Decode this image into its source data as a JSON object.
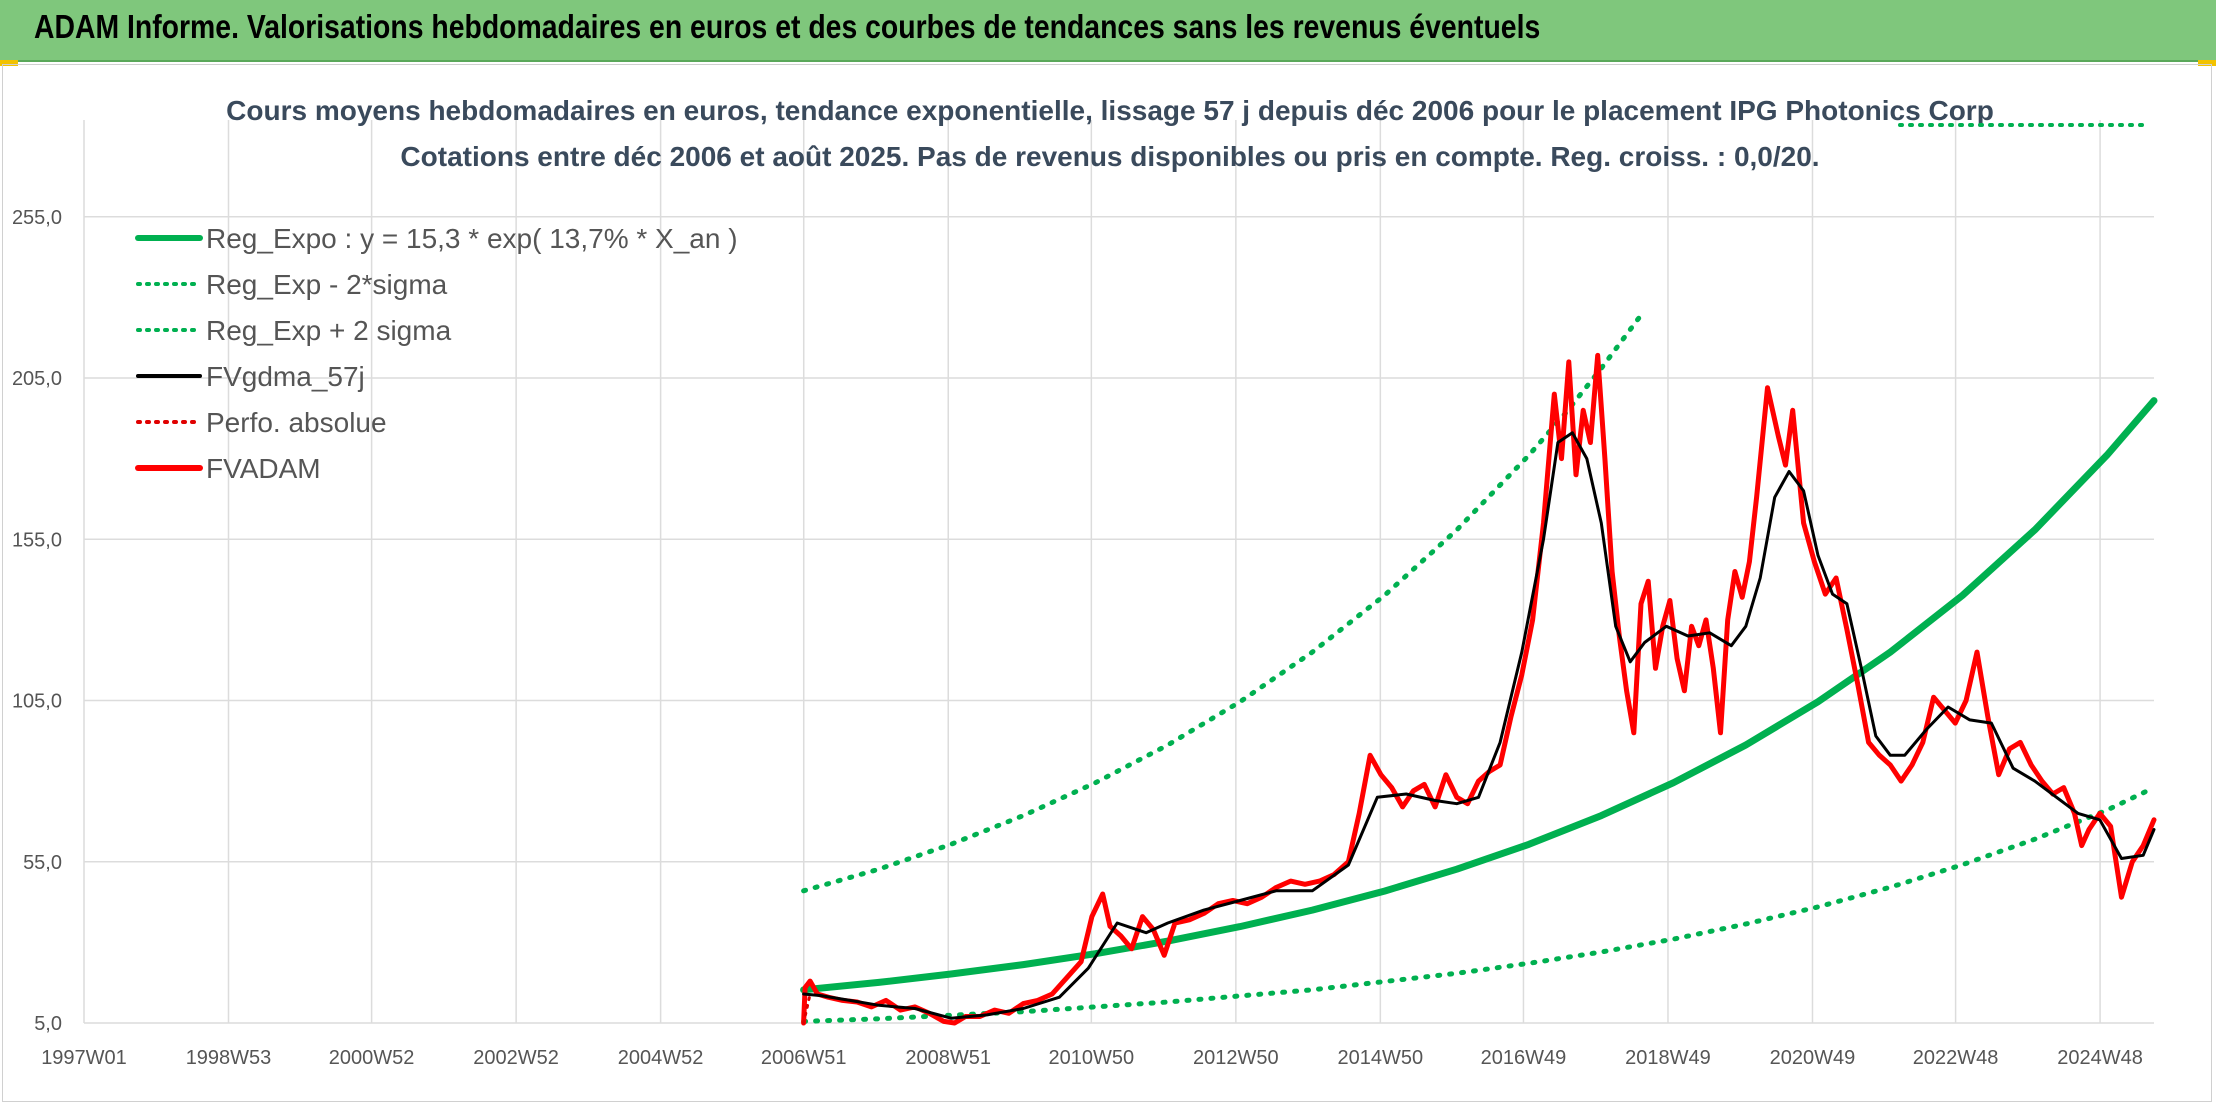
{
  "header": {
    "title": "ADAM Informe. Valorisations hebdomadaires en euros et des courbes de tendances sans les revenus éventuels"
  },
  "chart_data": {
    "type": "line",
    "title": "Cours moyens hebdomadaires en euros, tendance exponentielle, lissage 57 j depuis déc 2006 pour le placement IPG Photonics Corp",
    "subtitle": "Cotations entre déc 2006 et août 2025. Pas de revenus disponibles ou pris en compte. Reg. croiss. : 0,0/20.",
    "xlabel": "",
    "ylabel": "",
    "x_ticks": [
      "1997W01",
      "1998W53",
      "2000W52",
      "2002W52",
      "2004W52",
      "2006W51",
      "2008W51",
      "2010W50",
      "2012W50",
      "2014W50",
      "2016W49",
      "2018W49",
      "2020W49",
      "2022W48",
      "2024W48"
    ],
    "y_ticks": [
      "5,0",
      "55,0",
      "105,0",
      "155,0",
      "205,0",
      "255,0"
    ],
    "xlim": [
      1997.0,
      2025.65
    ],
    "ylim": [
      5,
      285
    ],
    "grid": true,
    "legend_position": "top-left",
    "colors": {
      "reg_expo": "#00b050",
      "sigma": "#00b050",
      "fvgdma": "#000000",
      "perfo": "#e00000",
      "fvadam": "#ff0000"
    },
    "legend": [
      {
        "label": "Reg_Expo : y = 15,3 * exp( 13,7% *  X_an )",
        "color": "#00b050",
        "style": "solid-thick"
      },
      {
        "label": "Reg_Exp - 2*sigma",
        "color": "#00b050",
        "style": "dotted"
      },
      {
        "label": "Reg_Exp + 2 sigma",
        "color": "#00b050",
        "style": "dotted"
      },
      {
        "label": "FVgdma_57j",
        "color": "#000000",
        "style": "solid"
      },
      {
        "label": "Perfo. absolue",
        "color": "#e00000",
        "style": "dotted"
      },
      {
        "label": "FVADAM",
        "color": "#ff0000",
        "style": "solid-thick"
      }
    ],
    "series": [
      {
        "name": "Reg_Expo : y = 15,3 * exp( 13,7% *  X_an )",
        "x": [
          2006.96,
          2008,
          2009,
          2010,
          2011,
          2012,
          2013,
          2014,
          2015,
          2016,
          2017,
          2018,
          2019,
          2020,
          2021,
          2022,
          2023,
          2024,
          2025,
          2025.65
        ],
        "y": [
          15.3,
          17.6,
          20.2,
          23.1,
          26.5,
          30.4,
          34.9,
          40.0,
          45.9,
          52.7,
          60.4,
          69.3,
          79.5,
          91.2,
          104.6,
          120.0,
          137.6,
          157.9,
          181.1,
          198.0
        ]
      },
      {
        "name": "Reg_Exp - 2*sigma",
        "x": [
          2006.96,
          2008,
          2010,
          2012,
          2014,
          2016,
          2017,
          2018,
          2019,
          2020,
          2021,
          2022,
          2023,
          2024,
          2025,
          2025.65
        ],
        "y": [
          5.5,
          6.3,
          8.5,
          11.5,
          15.3,
          20.4,
          23.5,
          27.0,
          31.0,
          35.7,
          41.0,
          47.1,
          54.1,
          62.0,
          71.0,
          78.0
        ]
      },
      {
        "name": "Reg_Exp + 2 sigma",
        "x": [
          2006.96,
          2008,
          2009,
          2010,
          2011,
          2012,
          2013,
          2014,
          2015,
          2016,
          2017,
          2017.5,
          2018,
          2018.6
        ],
        "y": [
          46.0,
          52.7,
          60.4,
          69.3,
          79.5,
          91.2,
          104.6,
          120.0,
          137.6,
          157.9,
          181.1,
          194.0,
          208.0,
          226.0
        ]
      },
      {
        "name": "FVgdma_57j",
        "x": [
          2006.96,
          2007.2,
          2007.6,
          2008.0,
          2008.5,
          2009.0,
          2009.5,
          2010.0,
          2010.5,
          2010.9,
          2011.3,
          2011.7,
          2012.0,
          2012.5,
          2013.0,
          2013.5,
          2014.0,
          2014.5,
          2014.9,
          2015.3,
          2015.7,
          2016.0,
          2016.3,
          2016.6,
          2016.9,
          2017.2,
          2017.4,
          2017.6,
          2017.8,
          2018.0,
          2018.2,
          2018.4,
          2018.6,
          2018.9,
          2019.2,
          2019.5,
          2019.8,
          2020.0,
          2020.2,
          2020.4,
          2020.6,
          2020.8,
          2021.0,
          2021.2,
          2021.4,
          2021.6,
          2021.8,
          2022.0,
          2022.2,
          2022.5,
          2022.8,
          2023.1,
          2023.4,
          2023.7,
          2024.0,
          2024.3,
          2024.6,
          2024.9,
          2025.2,
          2025.5,
          2025.65
        ],
        "y": [
          14,
          13.5,
          12,
          10.5,
          9.5,
          6.5,
          7.5,
          9.5,
          13,
          22,
          36,
          33,
          36,
          40,
          43,
          46,
          46,
          54,
          75,
          76,
          74,
          73,
          75,
          92,
          120,
          155,
          185,
          188,
          180,
          160,
          128,
          117,
          123,
          128,
          125,
          126,
          122,
          128,
          143,
          168,
          176,
          170,
          150,
          138,
          135,
          115,
          94,
          88,
          88,
          96,
          103,
          99,
          98,
          84,
          80,
          75,
          70,
          68,
          56,
          57,
          65
        ]
      },
      {
        "name": "Perfo. absolue",
        "x": [
          2006.96,
          2007.05
        ],
        "y": [
          5.0,
          14.0
        ]
      },
      {
        "name": "FVADAM",
        "x": [
          2006.96,
          2006.98,
          2007.05,
          2007.15,
          2007.3,
          2007.5,
          2007.7,
          2007.9,
          2008.1,
          2008.3,
          2008.5,
          2008.7,
          2008.9,
          2009.05,
          2009.2,
          2009.4,
          2009.6,
          2009.8,
          2010.0,
          2010.2,
          2010.4,
          2010.6,
          2010.8,
          2010.95,
          2011.1,
          2011.2,
          2011.35,
          2011.5,
          2011.65,
          2011.8,
          2011.95,
          2012.1,
          2012.3,
          2012.5,
          2012.7,
          2012.9,
          2013.1,
          2013.3,
          2013.5,
          2013.7,
          2013.9,
          2014.1,
          2014.3,
          2014.5,
          2014.65,
          2014.8,
          2014.95,
          2015.1,
          2015.25,
          2015.4,
          2015.55,
          2015.7,
          2015.85,
          2016.0,
          2016.15,
          2016.3,
          2016.45,
          2016.6,
          2016.75,
          2016.9,
          2017.05,
          2017.2,
          2017.35,
          2017.45,
          2017.55,
          2017.65,
          2017.75,
          2017.85,
          2017.95,
          2018.05,
          2018.15,
          2018.25,
          2018.35,
          2018.45,
          2018.55,
          2018.65,
          2018.75,
          2018.85,
          2018.95,
          2019.05,
          2019.15,
          2019.25,
          2019.35,
          2019.45,
          2019.55,
          2019.65,
          2019.75,
          2019.85,
          2019.95,
          2020.05,
          2020.15,
          2020.3,
          2020.45,
          2020.55,
          2020.65,
          2020.8,
          2020.95,
          2021.1,
          2021.25,
          2021.4,
          2021.55,
          2021.7,
          2021.85,
          2022.0,
          2022.15,
          2022.3,
          2022.45,
          2022.6,
          2022.75,
          2022.9,
          2023.05,
          2023.2,
          2023.35,
          2023.5,
          2023.65,
          2023.8,
          2023.95,
          2024.1,
          2024.25,
          2024.4,
          2024.55,
          2024.65,
          2024.75,
          2024.9,
          2025.05,
          2025.2,
          2025.35,
          2025.5,
          2025.65
        ],
        "y": [
          5,
          16,
          18,
          14,
          13,
          12,
          11.5,
          10,
          12,
          9,
          10,
          8,
          5.5,
          5,
          7,
          7,
          9,
          8,
          11,
          12,
          14,
          19,
          24,
          38,
          45,
          35,
          32,
          28,
          38,
          34,
          26,
          36,
          37,
          39,
          42,
          43,
          42,
          44,
          47,
          49,
          48,
          49,
          51,
          55,
          70,
          88,
          82,
          78,
          72,
          77,
          79,
          72,
          82,
          75,
          73,
          80,
          83,
          85,
          100,
          113,
          130,
          160,
          200,
          180,
          210,
          175,
          195,
          185,
          212,
          180,
          145,
          125,
          108,
          95,
          135,
          142,
          115,
          128,
          136,
          118,
          108,
          128,
          122,
          130,
          115,
          95,
          130,
          145,
          137,
          148,
          168,
          202,
          187,
          178,
          195,
          160,
          148,
          138,
          143,
          127,
          110,
          92,
          88,
          85,
          80,
          85,
          92,
          106,
          102,
          98,
          105,
          120,
          100,
          82,
          90,
          92,
          85,
          80,
          76,
          78,
          70,
          60,
          65,
          70,
          66,
          44,
          55,
          60,
          68
        ]
      }
    ]
  }
}
